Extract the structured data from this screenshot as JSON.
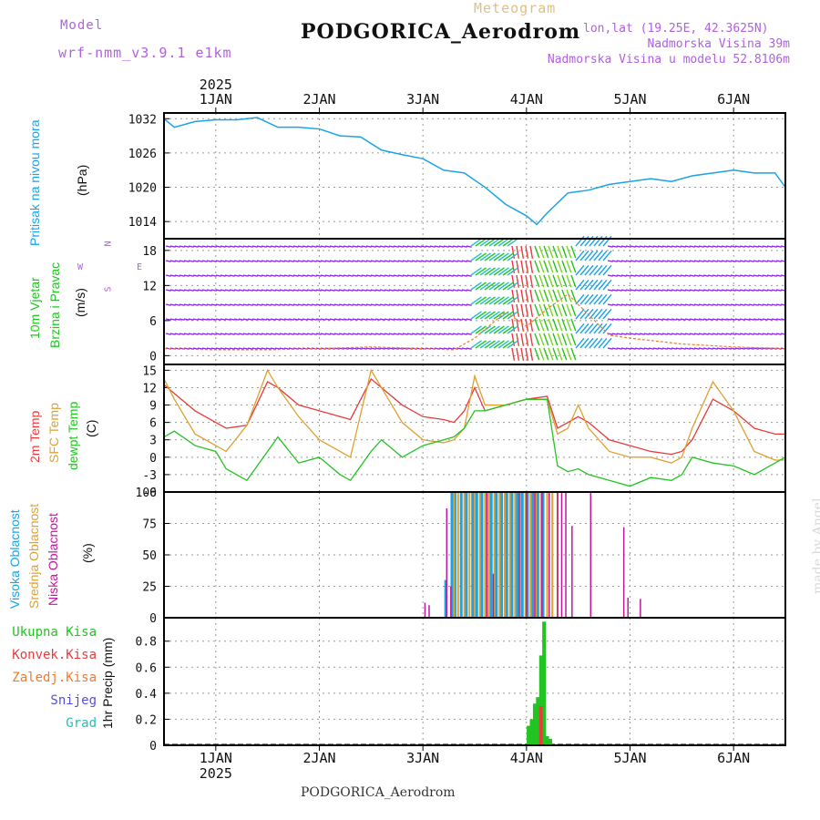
{
  "header": {
    "model_label": "Model",
    "model_name": "wrf-nmm_v3.9.1 e1km",
    "meteogram_label": "Meteogram",
    "station": "PODGORICA_Aerodrom",
    "lonlat": "lon,lat (19.25E, 42.3625N)",
    "elevation": "Nadmorska Visina 39m",
    "model_elevation": "Nadmorska Visina u modelu 52.8106m",
    "watermark": "made by Angel",
    "footer_station": "PODGORICA_Aerodrom"
  },
  "time_axis": {
    "year_label": "2025",
    "days": [
      "1JAN",
      "2JAN",
      "3JAN",
      "4JAN",
      "5JAN",
      "6JAN"
    ]
  },
  "panel_labels": {
    "pressure": "Pritisak na nivou mora",
    "pressure_unit": "(hPa)",
    "wind_speed": "10m Vjetar",
    "wind_dir": "Brzina i Pravac",
    "wind_unit": "(m/s)",
    "compass_n": "N",
    "compass_s": "S",
    "compass_e": "E",
    "compass_w": "W",
    "t2m": "2m Temp",
    "tsfc": "SFC Temp",
    "tdew": "dewpt Temp",
    "temp_unit": "(C)",
    "cloud_high": "Visoka Oblacnost",
    "cloud_mid": "Srednja Oblacnost",
    "cloud_low": "Niska Oblacnost",
    "cloud_unit": "(%)",
    "precip_total": "Ukupna Kisa",
    "precip_conv": "Konvek.Kisa",
    "precip_frz": "Zaledj.Kisa",
    "precip_snow": "Snijeg",
    "precip_grad": "Grad",
    "precip_unit": "1hr Precip (mm)"
  },
  "colors": {
    "pressure": "#1aa3e8",
    "t2m": "#e83c3c",
    "tsfc": "#e0a030",
    "tdew": "#22c422",
    "cloud_high": "#1aa3e8",
    "cloud_mid": "#e0a030",
    "cloud_low": "#c0189a",
    "precip_total": "#22c422",
    "precip_conv": "#e83c3c",
    "precip_frz": "#f07a30",
    "precip_snow": "#5050e0",
    "precip_grad": "#20c0c0",
    "wind_barb": "#8a2be2",
    "model_label": "#b060e0",
    "meteogram_label": "#e0c080",
    "watermark": "#d8d8d8"
  },
  "chart_data": [
    {
      "type": "line",
      "panel": "pressure",
      "ylim": [
        1011,
        1033
      ],
      "yticks": [
        1014,
        1020,
        1026,
        1032
      ],
      "x_days": [
        0.5,
        0.6,
        0.8,
        1.0,
        1.2,
        1.4,
        1.6,
        1.8,
        2.0,
        2.2,
        2.4,
        2.6,
        2.8,
        3.0,
        3.2,
        3.4,
        3.6,
        3.8,
        4.0,
        4.1,
        4.2,
        4.4,
        4.6,
        4.8,
        5.0,
        5.2,
        5.4,
        5.6,
        5.8,
        6.0,
        6.2,
        6.4,
        6.5
      ],
      "series": [
        {
          "name": "Pritisak na nivou mora",
          "values": [
            1032,
            1030.5,
            1031.5,
            1031.8,
            1031.8,
            1032.2,
            1030.5,
            1030.5,
            1030.2,
            1029,
            1028.8,
            1026.5,
            1025.7,
            1025,
            1023,
            1022.5,
            1020,
            1017,
            1015,
            1013.5,
            1015.5,
            1019,
            1019.5,
            1020.5,
            1021,
            1021.5,
            1021,
            1022,
            1022.5,
            1023,
            1022.5,
            1022.5,
            1020
          ]
        }
      ]
    },
    {
      "type": "line",
      "panel": "wind",
      "ylim": [
        -1.5,
        20
      ],
      "yticks": [
        0,
        6,
        12,
        18
      ],
      "x_days": [
        0.5,
        1.0,
        1.5,
        2.0,
        2.5,
        3.0,
        3.3,
        3.5,
        3.8,
        4.0,
        4.2,
        4.4,
        4.6,
        4.8,
        5.0,
        5.5,
        6.0,
        6.5
      ],
      "series": [
        {
          "name": "10m Vjetar",
          "values": [
            1.2,
            1.0,
            1.0,
            1.2,
            1.5,
            1.2,
            1.0,
            3.0,
            7.5,
            5.0,
            8.0,
            10.5,
            7.0,
            3.5,
            3.0,
            2.0,
            1.5,
            1.2
          ]
        }
      ]
    },
    {
      "type": "line",
      "panel": "temperature",
      "ylim": [
        -6,
        16
      ],
      "yticks": [
        -6,
        -3,
        0,
        3,
        6,
        9,
        12,
        15
      ],
      "x_days": [
        0.5,
        0.6,
        0.8,
        1.0,
        1.1,
        1.3,
        1.5,
        1.6,
        1.8,
        2.0,
        2.2,
        2.3,
        2.5,
        2.6,
        2.8,
        3.0,
        3.2,
        3.3,
        3.4,
        3.5,
        3.6,
        3.8,
        4.0,
        4.2,
        4.3,
        4.4,
        4.5,
        4.6,
        4.8,
        5.0,
        5.2,
        5.4,
        5.5,
        5.6,
        5.8,
        6.0,
        6.2,
        6.4,
        6.5
      ],
      "series": [
        {
          "name": "2m Temp",
          "values": [
            12.5,
            11,
            8,
            6,
            5,
            5.5,
            13,
            12,
            9,
            8,
            7,
            6.5,
            13.5,
            12,
            9,
            7,
            6.5,
            6,
            8,
            12,
            8,
            9,
            10,
            10.5,
            5,
            6,
            7,
            6,
            3,
            2,
            1,
            0.5,
            1,
            3,
            10,
            8,
            5,
            4,
            4
          ]
        },
        {
          "name": "SFC Temp",
          "values": [
            13.5,
            10,
            4,
            2,
            1,
            5.5,
            15,
            12,
            7,
            3,
            1,
            0,
            15,
            12,
            6,
            3,
            2.5,
            3,
            5,
            14,
            9,
            9,
            10,
            10,
            4,
            5,
            9,
            5,
            1,
            0,
            0,
            -1,
            0,
            5,
            13,
            8,
            1,
            -0.5,
            -0.5
          ]
        },
        {
          "name": "dewpt Temp",
          "values": [
            3.5,
            4.5,
            2,
            1,
            -2,
            -4,
            1,
            3.5,
            -1,
            0,
            -3,
            -4,
            1,
            3,
            0,
            2,
            3,
            3.5,
            5,
            8,
            8,
            9,
            10,
            10,
            -1.5,
            -2.5,
            -2,
            -3,
            -4,
            -5,
            -3.5,
            -4,
            -3,
            0,
            -1,
            -1.5,
            -3,
            -1,
            0
          ]
        }
      ]
    },
    {
      "type": "bar",
      "panel": "clouds",
      "ylim": [
        0,
        100
      ],
      "yticks": [
        0,
        25,
        50,
        75,
        100
      ],
      "series": [
        {
          "name": "Visoka Oblacnost",
          "x_days": [
            3.22,
            3.28,
            3.31,
            3.37,
            3.42,
            3.48,
            3.52,
            3.57,
            3.61,
            3.66,
            3.71,
            3.76,
            3.81,
            3.86,
            3.91,
            3.96,
            4.01,
            4.06,
            4.11,
            4.16
          ],
          "values": [
            30,
            100,
            100,
            100,
            100,
            100,
            100,
            100,
            100,
            100,
            100,
            100,
            100,
            100,
            100,
            100,
            100,
            100,
            100,
            100
          ]
        },
        {
          "name": "Srednja Oblacnost",
          "x_days": [
            3.3,
            3.34,
            3.4,
            3.45,
            3.5,
            3.55,
            3.6,
            3.64,
            3.69,
            3.74,
            3.79,
            3.84,
            3.89,
            3.94,
            3.99,
            4.04,
            4.09,
            4.14,
            4.2,
            4.25,
            4.3
          ],
          "values": [
            100,
            100,
            100,
            100,
            100,
            100,
            100,
            100,
            100,
            100,
            100,
            100,
            100,
            100,
            100,
            100,
            100,
            100,
            100,
            100,
            100
          ]
        },
        {
          "name": "Niska Oblacnost",
          "x_days": [
            3.02,
            3.06,
            3.23,
            3.27,
            3.62,
            3.68,
            3.93,
            4.0,
            4.08,
            4.15,
            4.22,
            4.3,
            4.34,
            4.38,
            4.44,
            4.62,
            4.94,
            4.98,
            5.1
          ],
          "values": [
            12,
            10,
            87,
            25,
            100,
            35,
            100,
            100,
            100,
            100,
            100,
            100,
            100,
            100,
            73,
            100,
            72,
            16,
            15
          ]
        }
      ]
    },
    {
      "type": "bar",
      "panel": "precipitation",
      "ylim": [
        0,
        0.98
      ],
      "yticks": [
        0,
        0.2,
        0.4,
        0.6,
        0.8
      ],
      "series": [
        {
          "name": "Ukupna Kisa",
          "x_days": [
            4.02,
            4.05,
            4.08,
            4.11,
            4.14,
            4.17,
            4.2,
            4.23
          ],
          "values": [
            0.15,
            0.2,
            0.32,
            0.37,
            0.69,
            0.95,
            0.07,
            0.05
          ]
        },
        {
          "name": "Konvek.Kisa",
          "x_days": [
            4.14
          ],
          "values": [
            0.3
          ]
        }
      ]
    }
  ]
}
